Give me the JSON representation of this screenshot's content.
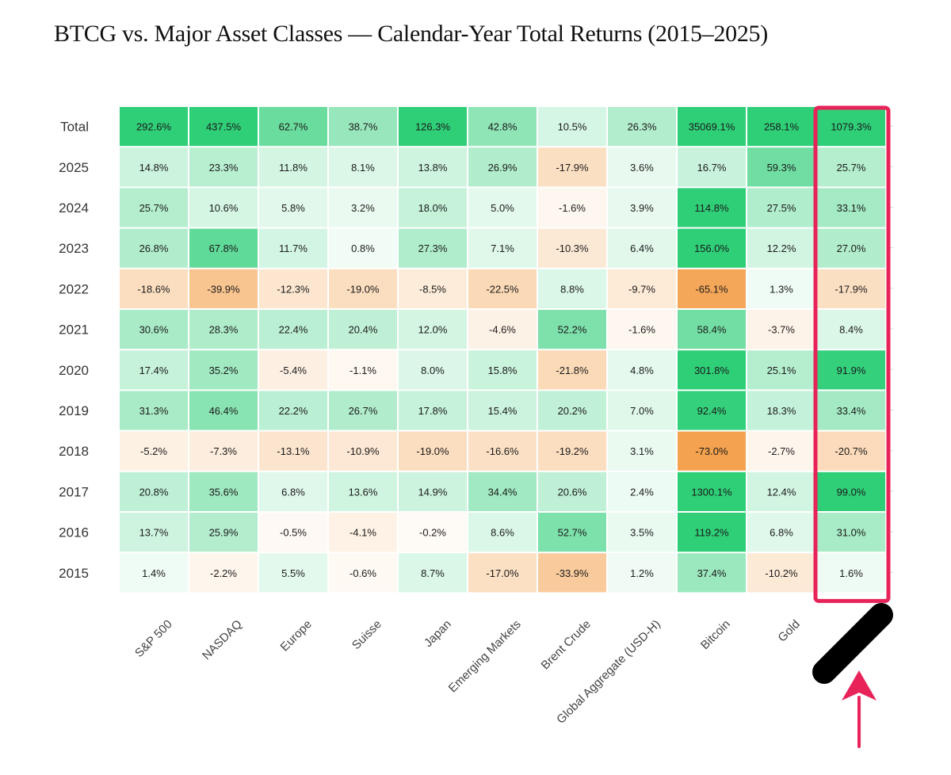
{
  "title": "BTCG vs. Major Asset Classes — Calendar-Year Total Returns (2015–2025)",
  "colors": {
    "positive": "#2fcf78",
    "negative": "#f4a24f",
    "highlight": "#e8235a",
    "marker": "#000000",
    "gridline": "#dddddd"
  },
  "chart_data": {
    "type": "heatmap",
    "title": "BTCG vs. Major Asset Classes — Calendar-Year Total Returns (2015–2025)",
    "columns": [
      "S&P 500",
      "NASDAQ",
      "Europe",
      "Suisse",
      "Japan",
      "Emerging Markets",
      "Brent Crude",
      "Global Aggregate (USD-H)",
      "Bitcoin",
      "Gold",
      ""
    ],
    "rows": [
      {
        "label": "Total",
        "values": [
          292.6,
          437.5,
          62.7,
          38.7,
          126.3,
          42.8,
          10.5,
          26.3,
          35069.1,
          258.1,
          1079.3
        ],
        "text": [
          "292.6%",
          "437.5%",
          "62.7%",
          "38.7%",
          "126.3%",
          "42.8%",
          "10.5%",
          "26.3%",
          "35069.1%",
          "258.1%",
          "1079.3%"
        ]
      },
      {
        "label": "2025",
        "values": [
          14.8,
          23.3,
          11.8,
          8.1,
          13.8,
          26.9,
          -17.9,
          3.6,
          16.7,
          59.3,
          25.7
        ],
        "text": [
          "14.8%",
          "23.3%",
          "11.8%",
          "8.1%",
          "13.8%",
          "26.9%",
          "-17.9%",
          "3.6%",
          "16.7%",
          "59.3%",
          "25.7%"
        ]
      },
      {
        "label": "2024",
        "values": [
          25.7,
          10.6,
          5.8,
          3.2,
          18.0,
          5.0,
          -1.6,
          3.9,
          114.8,
          27.5,
          33.1
        ],
        "text": [
          "25.7%",
          "10.6%",
          "5.8%",
          "3.2%",
          "18.0%",
          "5.0%",
          "-1.6%",
          "3.9%",
          "114.8%",
          "27.5%",
          "33.1%"
        ]
      },
      {
        "label": "2023",
        "values": [
          26.8,
          67.8,
          11.7,
          0.8,
          27.3,
          7.1,
          -10.3,
          6.4,
          156.0,
          12.2,
          27.0
        ],
        "text": [
          "26.8%",
          "67.8%",
          "11.7%",
          "0.8%",
          "27.3%",
          "7.1%",
          "-10.3%",
          "6.4%",
          "156.0%",
          "12.2%",
          "27.0%"
        ]
      },
      {
        "label": "2022",
        "values": [
          -18.6,
          -39.9,
          -12.3,
          -19.0,
          -8.5,
          -22.5,
          8.8,
          -9.7,
          -65.1,
          1.3,
          -17.9
        ],
        "text": [
          "-18.6%",
          "-39.9%",
          "-12.3%",
          "-19.0%",
          "-8.5%",
          "-22.5%",
          "8.8%",
          "-9.7%",
          "-65.1%",
          "1.3%",
          "-17.9%"
        ]
      },
      {
        "label": "2021",
        "values": [
          30.6,
          28.3,
          22.4,
          20.4,
          12.0,
          -4.6,
          52.2,
          -1.6,
          58.4,
          -3.7,
          8.4
        ],
        "text": [
          "30.6%",
          "28.3%",
          "22.4%",
          "20.4%",
          "12.0%",
          "-4.6%",
          "52.2%",
          "-1.6%",
          "58.4%",
          "-3.7%",
          "8.4%"
        ]
      },
      {
        "label": "2020",
        "values": [
          17.4,
          35.2,
          -5.4,
          -1.1,
          8.0,
          15.8,
          -21.8,
          4.8,
          301.8,
          25.1,
          91.9
        ],
        "text": [
          "17.4%",
          "35.2%",
          "-5.4%",
          "-1.1%",
          "8.0%",
          "15.8%",
          "-21.8%",
          "4.8%",
          "301.8%",
          "25.1%",
          "91.9%"
        ]
      },
      {
        "label": "2019",
        "values": [
          31.3,
          46.4,
          22.2,
          26.7,
          17.8,
          15.4,
          20.2,
          7.0,
          92.4,
          18.3,
          33.4
        ],
        "text": [
          "31.3%",
          "46.4%",
          "22.2%",
          "26.7%",
          "17.8%",
          "15.4%",
          "20.2%",
          "7.0%",
          "92.4%",
          "18.3%",
          "33.4%"
        ]
      },
      {
        "label": "2018",
        "values": [
          -5.2,
          -7.3,
          -13.1,
          -10.9,
          -19.0,
          -16.6,
          -19.2,
          3.1,
          -73.0,
          -2.7,
          -20.7
        ],
        "text": [
          "-5.2%",
          "-7.3%",
          "-13.1%",
          "-10.9%",
          "-19.0%",
          "-16.6%",
          "-19.2%",
          "3.1%",
          "-73.0%",
          "-2.7%",
          "-20.7%"
        ]
      },
      {
        "label": "2017",
        "values": [
          20.8,
          35.6,
          6.8,
          13.6,
          14.9,
          34.4,
          20.6,
          2.4,
          1300.1,
          12.4,
          99.0
        ],
        "text": [
          "20.8%",
          "35.6%",
          "6.8%",
          "13.6%",
          "14.9%",
          "34.4%",
          "20.6%",
          "2.4%",
          "1300.1%",
          "12.4%",
          "99.0%"
        ]
      },
      {
        "label": "2016",
        "values": [
          13.7,
          25.9,
          -0.5,
          -4.1,
          -0.2,
          8.6,
          52.7,
          3.5,
          119.2,
          6.8,
          31.0
        ],
        "text": [
          "13.7%",
          "25.9%",
          "-0.5%",
          "-4.1%",
          "-0.2%",
          "8.6%",
          "52.7%",
          "3.5%",
          "119.2%",
          "6.8%",
          "31.0%"
        ]
      },
      {
        "label": "2015",
        "values": [
          1.4,
          -2.2,
          5.5,
          -0.6,
          8.7,
          -17.0,
          -33.9,
          1.2,
          37.4,
          -10.2,
          1.6
        ],
        "text": [
          "1.4%",
          "-2.2%",
          "5.5%",
          "-0.6%",
          "8.7%",
          "-17.0%",
          "-33.9%",
          "1.2%",
          "37.4%",
          "-10.2%",
          "1.6%"
        ]
      }
    ],
    "highlighted_column": 10,
    "annotations": [
      "highlight box around last column",
      "black marker stroke over last column label",
      "arrow pointing up to last column"
    ]
  }
}
